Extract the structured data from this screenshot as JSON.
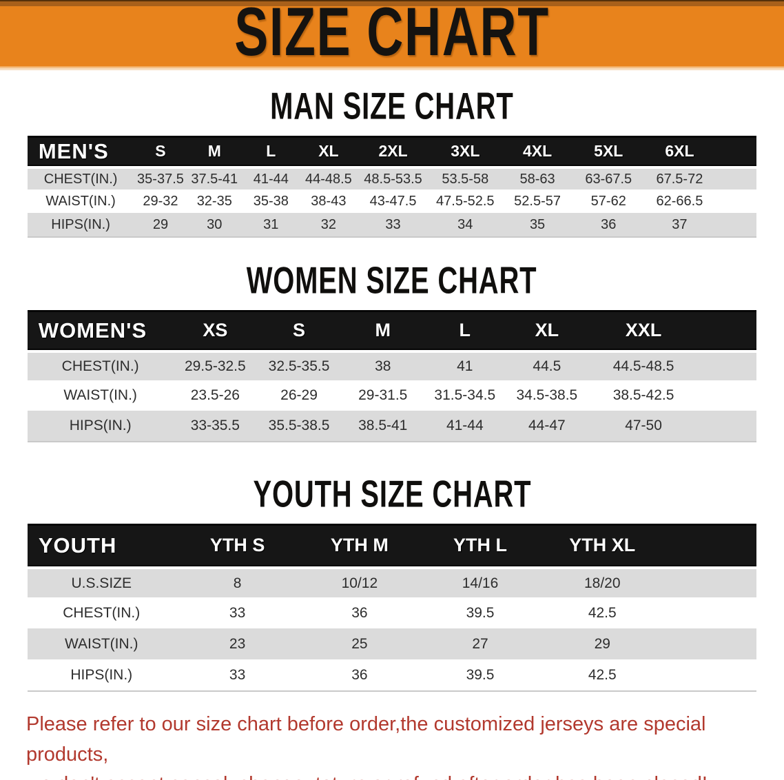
{
  "banner": {
    "title": "SIZE CHART"
  },
  "colors": {
    "banner_orange": "#e8831c",
    "table_header_black": "#161616",
    "row_gray": "#dbdbdb",
    "notice_red": "#b2392e"
  },
  "sections": [
    {
      "id": "men",
      "title": "MAN SIZE CHART",
      "header_label": "MEN'S",
      "columns": [
        "S",
        "M",
        "L",
        "XL",
        "2XL",
        "3XL",
        "4XL",
        "5XL",
        "6XL"
      ],
      "rows": [
        {
          "label": "CHEST(IN.)",
          "values": [
            "35-37.5",
            "37.5-41",
            "41-44",
            "44-48.5",
            "48.5-53.5",
            "53.5-58",
            "58-63",
            "63-67.5",
            "67.5-72"
          ]
        },
        {
          "label": "WAIST(IN.)",
          "values": [
            "29-32",
            "32-35",
            "35-38",
            "38-43",
            "43-47.5",
            "47.5-52.5",
            "52.5-57",
            "57-62",
            "62-66.5"
          ]
        },
        {
          "label": "HIPS(IN.)",
          "values": [
            "29",
            "30",
            "31",
            "32",
            "33",
            "34",
            "35",
            "36",
            "37"
          ]
        }
      ]
    },
    {
      "id": "women",
      "title": "WOMEN SIZE CHART",
      "header_label": "WOMEN'S",
      "columns": [
        "XS",
        "S",
        "M",
        "L",
        "XL",
        "XXL"
      ],
      "rows": [
        {
          "label": "CHEST(IN.)",
          "values": [
            "29.5-32.5",
            "32.5-35.5",
            "38",
            "41",
            "44.5",
            "44.5-48.5"
          ]
        },
        {
          "label": "WAIST(IN.)",
          "values": [
            "23.5-26",
            "26-29",
            "29-31.5",
            "31.5-34.5",
            "34.5-38.5",
            "38.5-42.5"
          ]
        },
        {
          "label": "HIPS(IN.)",
          "values": [
            "33-35.5",
            "35.5-38.5",
            "38.5-41",
            "41-44",
            "44-47",
            "47-50"
          ]
        }
      ]
    },
    {
      "id": "youth",
      "title": "YOUTH SIZE CHART",
      "header_label": "YOUTH",
      "columns": [
        "YTH S",
        "YTH M",
        "YTH L",
        "YTH XL"
      ],
      "rows": [
        {
          "label": "U.S.SIZE",
          "values": [
            "8",
            "10/12",
            "14/16",
            "18/20"
          ]
        },
        {
          "label": "CHEST(IN.)",
          "values": [
            "33",
            "36",
            "39.5",
            "42.5"
          ]
        },
        {
          "label": "WAIST(IN.)",
          "values": [
            "23",
            "25",
            "27",
            "29"
          ]
        },
        {
          "label": "HIPS(IN.)",
          "values": [
            "33",
            "36",
            "39.5",
            "42.5"
          ]
        }
      ]
    }
  ],
  "notice": {
    "line1": "Please refer to our size chart before order,the customized jerseys are special products,",
    "line2": "we don't accept cancel, change, teturn or refund after order has been placed!"
  }
}
